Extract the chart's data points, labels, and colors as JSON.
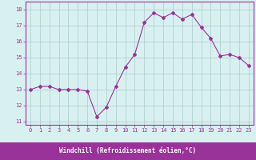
{
  "x": [
    0,
    1,
    2,
    3,
    4,
    5,
    6,
    7,
    8,
    9,
    10,
    11,
    12,
    13,
    14,
    15,
    16,
    17,
    18,
    19,
    20,
    21,
    22,
    23
  ],
  "y": [
    13.0,
    13.2,
    13.2,
    13.0,
    13.0,
    13.0,
    12.9,
    11.3,
    11.9,
    13.2,
    14.4,
    15.2,
    17.2,
    17.8,
    17.5,
    17.8,
    17.4,
    17.7,
    16.9,
    16.2,
    15.1,
    15.2,
    15.0,
    14.5
  ],
  "line_color": "#993399",
  "marker": "D",
  "markersize": 2.0,
  "linewidth": 0.8,
  "bg_color": "#d8f0f0",
  "grid_color": "#aacccc",
  "xlabel": "Windchill (Refroidissement éolien,°C)",
  "xlabel_bg": "#993399",
  "xlabel_text_color": "#ffffff",
  "ylim": [
    10.8,
    18.5
  ],
  "yticks": [
    11,
    12,
    13,
    14,
    15,
    16,
    17,
    18
  ],
  "xticks": [
    0,
    1,
    2,
    3,
    4,
    5,
    6,
    7,
    8,
    9,
    10,
    11,
    12,
    13,
    14,
    15,
    16,
    17,
    18,
    19,
    20,
    21,
    22,
    23
  ],
  "tick_label_color": "#993399",
  "tick_label_fontsize": 5.0,
  "xlabel_fontsize": 5.5,
  "spine_color": "#993399",
  "spine_linewidth": 0.8
}
